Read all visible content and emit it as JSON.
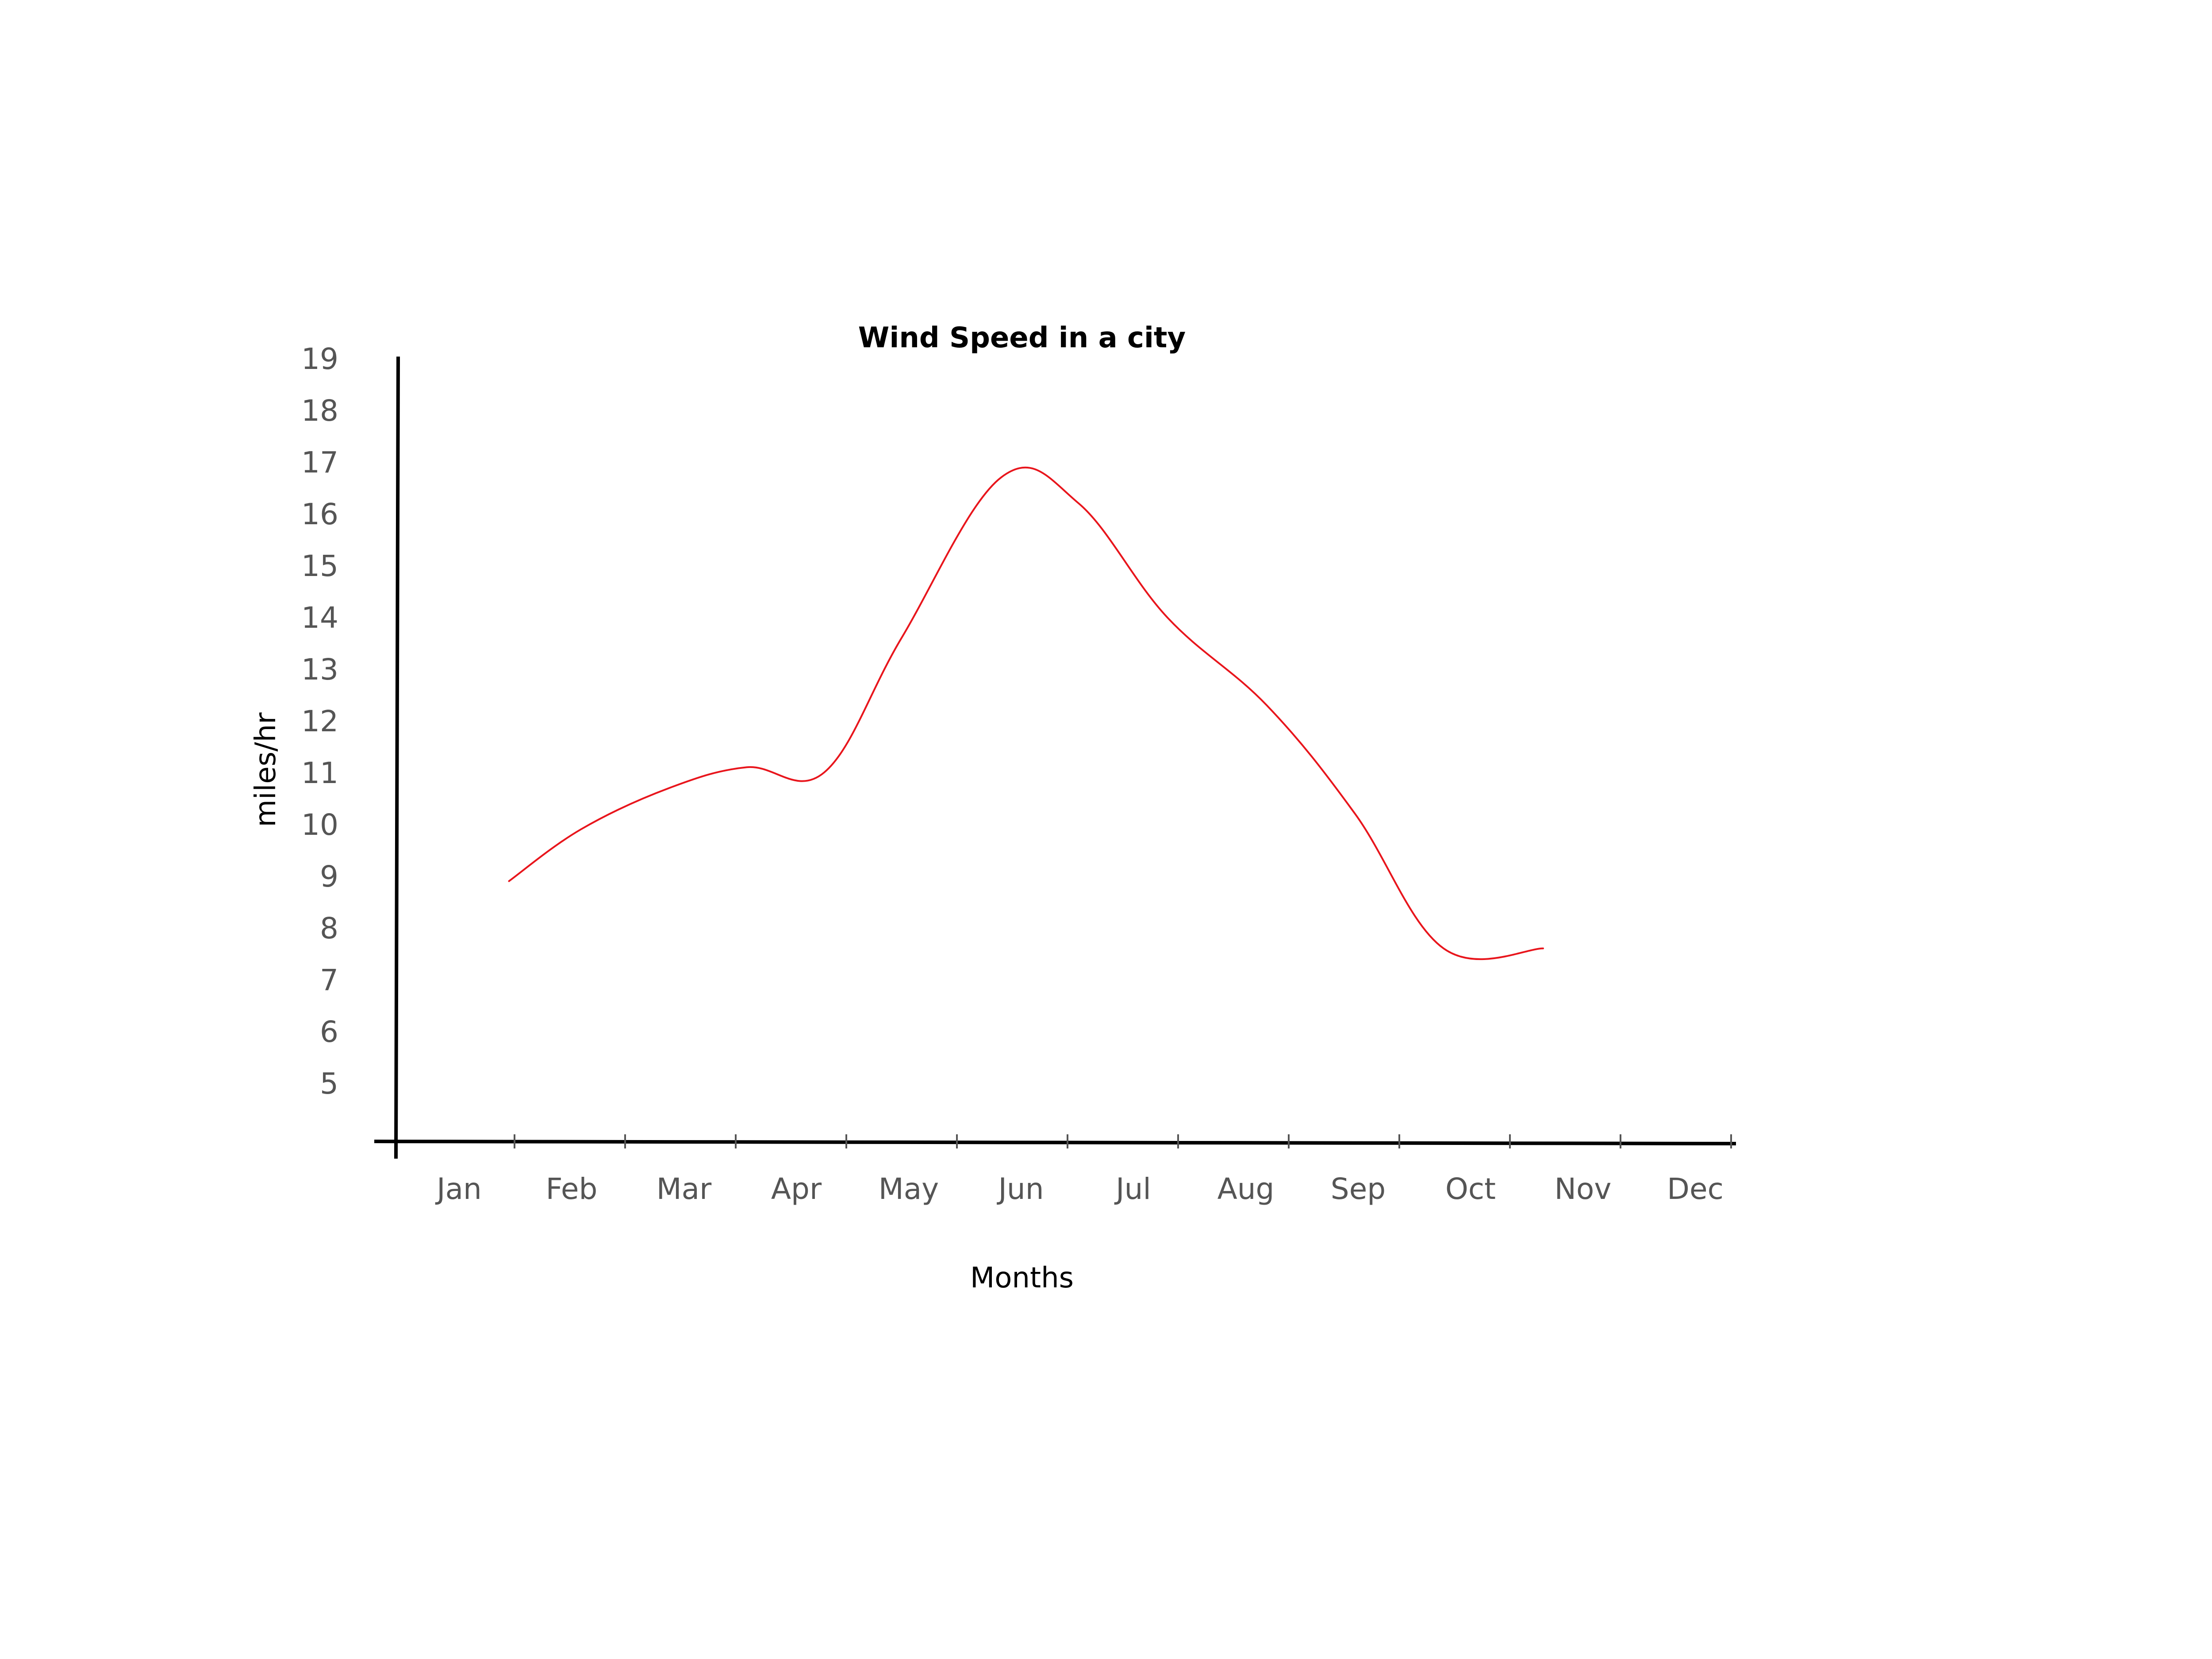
{
  "chart_data": {
    "type": "line",
    "title": "Wind Speed in a city",
    "xlabel": "Months",
    "ylabel": "miles/hr",
    "categories": [
      "Jan",
      "Feb",
      "Mar",
      "Apr",
      "May",
      "Jun",
      "Jul",
      "Aug",
      "Sep",
      "Oct",
      "Nov",
      "Dec"
    ],
    "y_ticks": [
      "19",
      "18",
      "17",
      "16",
      "15",
      "14",
      "13",
      "12",
      "11",
      "10",
      "9",
      "8",
      "7",
      "6",
      "5"
    ],
    "ylim": [
      4,
      19
    ],
    "grid": false,
    "series": [
      {
        "color": "#e8151c",
        "x": [
          0.45,
          1.1,
          1.9,
          2.6,
          3.3,
          4.0,
          4.9,
          5.6,
          6.4,
          7.3,
          8.1,
          8.9,
          9.8
        ],
        "y": [
          8.9,
          9.9,
          10.7,
          11.1,
          11.0,
          13.6,
          16.7,
          16.2,
          14.0,
          12.3,
          10.2,
          7.6,
          7.6
        ]
      }
    ]
  }
}
